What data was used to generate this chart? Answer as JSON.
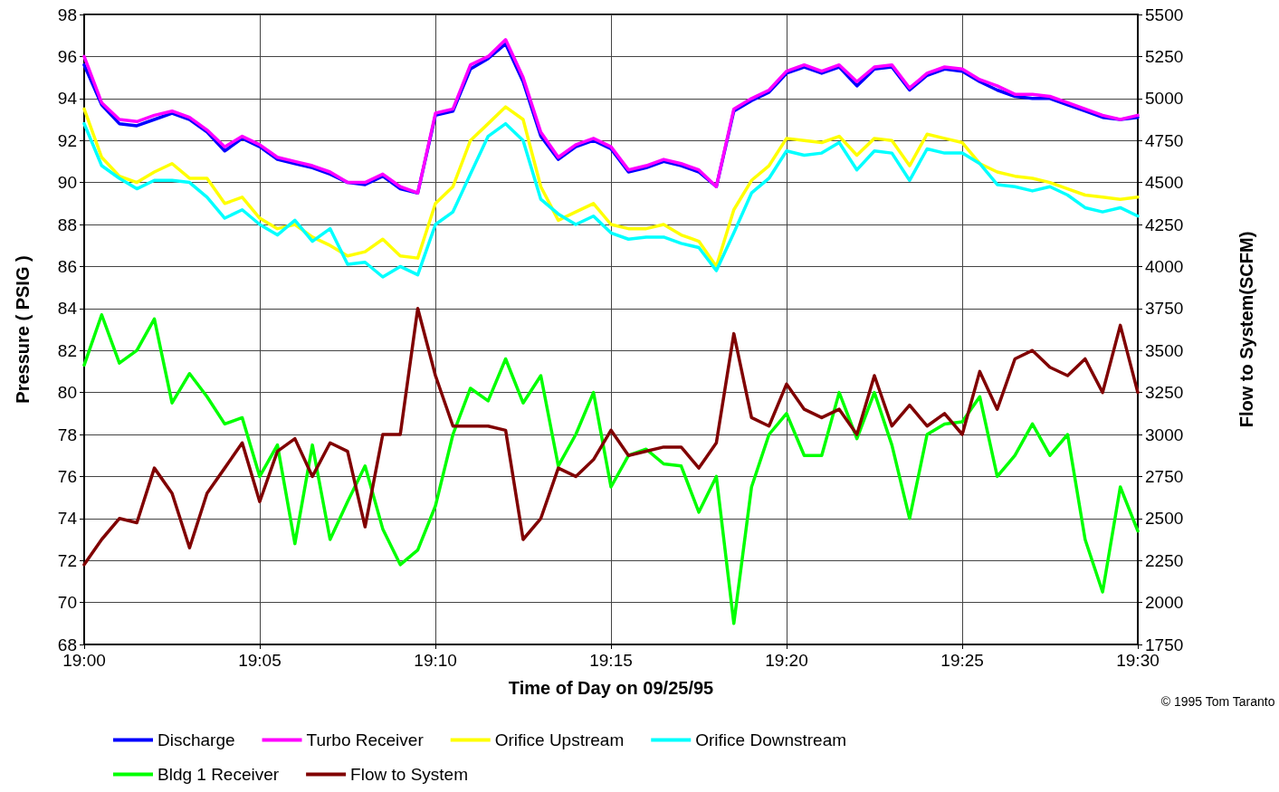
{
  "chart_data": {
    "type": "line",
    "xlabel": "Time of Day on 09/25/95",
    "ylabel": "Pressure ( PSIG )",
    "y2label": "Flow to System(SCFM)",
    "annotations": [
      "© 1995 Tom Taranto"
    ],
    "x": [
      19,
      19.0083,
      19.0167,
      19.025,
      19.0333,
      19.0417,
      19.05,
      19.0583,
      19.0667,
      19.075,
      19.0833,
      19.0917,
      19.1,
      19.1083,
      19.1167,
      19.125,
      19.1333,
      19.1417,
      19.15,
      19.1583,
      19.1667,
      19.175,
      19.1833,
      19.1917,
      19.2,
      19.2083,
      19.2167,
      19.225,
      19.2333,
      19.2417,
      19.25,
      19.2583,
      19.2667,
      19.275,
      19.2833,
      19.2917,
      19.3,
      19.3083,
      19.3167,
      19.325,
      19.3333,
      19.3417,
      19.35,
      19.3583,
      19.3667,
      19.375,
      19.3833,
      19.3917,
      19.4,
      19.4083,
      19.4167,
      19.425,
      19.4333,
      19.4417,
      19.45,
      19.4583,
      19.4667,
      19.475,
      19.4833,
      19.4917,
      19.5
    ],
    "series": [
      {
        "name": "Discharge",
        "color": "#0000ff",
        "values": [
          95.6,
          93.7,
          92.8,
          92.7,
          93.0,
          93.3,
          93.0,
          92.4,
          91.5,
          92.1,
          91.7,
          91.1,
          90.9,
          90.7,
          90.4,
          90.0,
          89.9,
          90.3,
          89.7,
          89.5,
          93.2,
          93.4,
          95.4,
          95.9,
          96.6,
          94.8,
          92.2,
          91.1,
          91.7,
          92.0,
          91.6,
          90.5,
          90.7,
          91.0,
          90.8,
          90.5,
          89.8,
          93.4,
          93.9,
          94.3,
          95.2,
          95.5,
          95.2,
          95.5,
          94.6,
          95.4,
          95.5,
          94.4,
          95.1,
          95.4,
          95.3,
          94.8,
          94.4,
          94.1,
          94.0,
          94.0,
          93.7,
          93.4,
          93.1,
          93.0,
          93.1
        ]
      },
      {
        "name": "Turbo Receiver",
        "color": "#ff00ff",
        "values": [
          96,
          93.8,
          93.0,
          92.9,
          93.2,
          93.4,
          93.1,
          92.5,
          91.7,
          92.2,
          91.8,
          91.2,
          91.0,
          90.8,
          90.5,
          90.0,
          90.0,
          90.4,
          89.8,
          89.5,
          93.3,
          93.5,
          95.6,
          96.0,
          96.8,
          95.0,
          92.4,
          91.2,
          91.8,
          92.1,
          91.7,
          90.6,
          90.8,
          91.1,
          90.9,
          90.6,
          89.8,
          93.5,
          94.0,
          94.4,
          95.3,
          95.6,
          95.3,
          95.6,
          94.8,
          95.5,
          95.6,
          94.5,
          95.2,
          95.5,
          95.4,
          94.9,
          94.6,
          94.2,
          94.2,
          94.1,
          93.8,
          93.5,
          93.2,
          93.0,
          93.2
        ]
      },
      {
        "name": "Orifice Upstream",
        "color": "#ffff00",
        "values": [
          93.5,
          91.2,
          90.3,
          90.0,
          90.5,
          90.9,
          90.2,
          90.2,
          89.0,
          89.3,
          88.3,
          87.8,
          88.0,
          87.4,
          87.0,
          86.5,
          86.7,
          87.3,
          86.5,
          86.4,
          89.0,
          89.8,
          92.0,
          92.8,
          93.6,
          93.0,
          89.8,
          88.2,
          88.6,
          89.0,
          88.0,
          87.8,
          87.8,
          88.0,
          87.5,
          87.2,
          86.0,
          88.7,
          90.1,
          90.8,
          92.1,
          92.0,
          91.9,
          92.2,
          91.3,
          92.1,
          92.0,
          90.8,
          92.3,
          92.1,
          91.9,
          90.9,
          90.5,
          90.3,
          90.2,
          90.0,
          89.7,
          89.4,
          89.3,
          89.2,
          89.3
        ]
      },
      {
        "name": "Orifice Downstream",
        "color": "#00ffff",
        "values": [
          92.8,
          90.8,
          90.2,
          89.7,
          90.1,
          90.1,
          90.0,
          89.3,
          88.3,
          88.7,
          88.0,
          87.5,
          88.2,
          87.2,
          87.8,
          86.1,
          86.2,
          85.5,
          86.0,
          85.6,
          88.0,
          88.6,
          90.4,
          92.2,
          92.8,
          92.0,
          89.2,
          88.5,
          88.0,
          88.4,
          87.6,
          87.3,
          87.4,
          87.4,
          87.1,
          86.9,
          85.8,
          87.6,
          89.5,
          90.2,
          91.5,
          91.3,
          91.4,
          91.9,
          90.6,
          91.5,
          91.4,
          90.1,
          91.6,
          91.4,
          91.4,
          90.9,
          89.9,
          89.8,
          89.6,
          89.8,
          89.4,
          88.8,
          88.6,
          88.8,
          88.4
        ]
      },
      {
        "name": "Bldg 1 Receiver",
        "color": "#00ff00",
        "values": [
          81.3,
          83.7,
          81.4,
          82.0,
          83.5,
          79.5,
          80.9,
          79.8,
          78.5,
          78.8,
          76.0,
          77.5,
          72.8,
          77.5,
          73.0,
          74.8,
          76.5,
          73.5,
          71.8,
          72.5,
          74.6,
          78.0,
          80.2,
          79.6,
          81.6,
          79.5,
          80.8,
          76.5,
          78.0,
          80.0,
          75.5,
          77.0,
          77.3,
          76.6,
          76.5,
          74.3,
          76.0,
          69.0,
          75.5,
          78.0,
          79.0,
          77.0,
          77.0,
          80.0,
          77.8,
          80.0,
          77.5,
          74.0,
          78.0,
          78.5,
          78.6,
          79.8,
          76.0,
          77.0,
          78.5,
          77.0,
          78.0,
          73.0,
          70.5,
          75.5,
          73.4
        ]
      },
      {
        "name": "Flow to System",
        "color": "#800000",
        "axis": "y2",
        "values": [
          2225,
          2375,
          2500,
          2475,
          2800,
          2650,
          2325,
          2650,
          2800,
          2950,
          2600,
          2900,
          2975,
          2750,
          2950,
          2900,
          2450,
          3000,
          3000,
          3750,
          3350,
          3050,
          3050,
          3050,
          3025,
          2375,
          2500,
          2800,
          2750,
          2850,
          3025,
          2875,
          2900,
          2925,
          2925,
          2800,
          2950,
          3600,
          3100,
          3050,
          3300,
          3150,
          3100,
          3150,
          3000,
          3350,
          3050,
          3175,
          3050,
          3125,
          3000,
          3375,
          3150,
          3450,
          3500,
          3400,
          3350,
          3450,
          3250,
          3650,
          3250
        ]
      }
    ],
    "xlim": [
      19,
      19.5
    ],
    "xticks": [
      {
        "value": 19,
        "label": "19:00"
      },
      {
        "value": 19.0833,
        "label": "19:05"
      },
      {
        "value": 19.1667,
        "label": "19:10"
      },
      {
        "value": 19.25,
        "label": "19:15"
      },
      {
        "value": 19.3333,
        "label": "19:20"
      },
      {
        "value": 19.4167,
        "label": "19:25"
      },
      {
        "value": 19.5,
        "label": "19:30"
      }
    ],
    "ylim": [
      68,
      98
    ],
    "yticks": [
      68,
      70,
      72,
      74,
      76,
      78,
      80,
      82,
      84,
      86,
      88,
      90,
      92,
      94,
      96,
      98
    ],
    "y2lim": [
      1750,
      5500
    ],
    "y2ticks": [
      1750,
      2000,
      2250,
      2500,
      2750,
      3000,
      3250,
      3500,
      3750,
      4000,
      4250,
      4500,
      4750,
      5000,
      5250,
      5500
    ],
    "grid": true,
    "legend": "bottom",
    "marker": "none",
    "line_style": "solid"
  }
}
